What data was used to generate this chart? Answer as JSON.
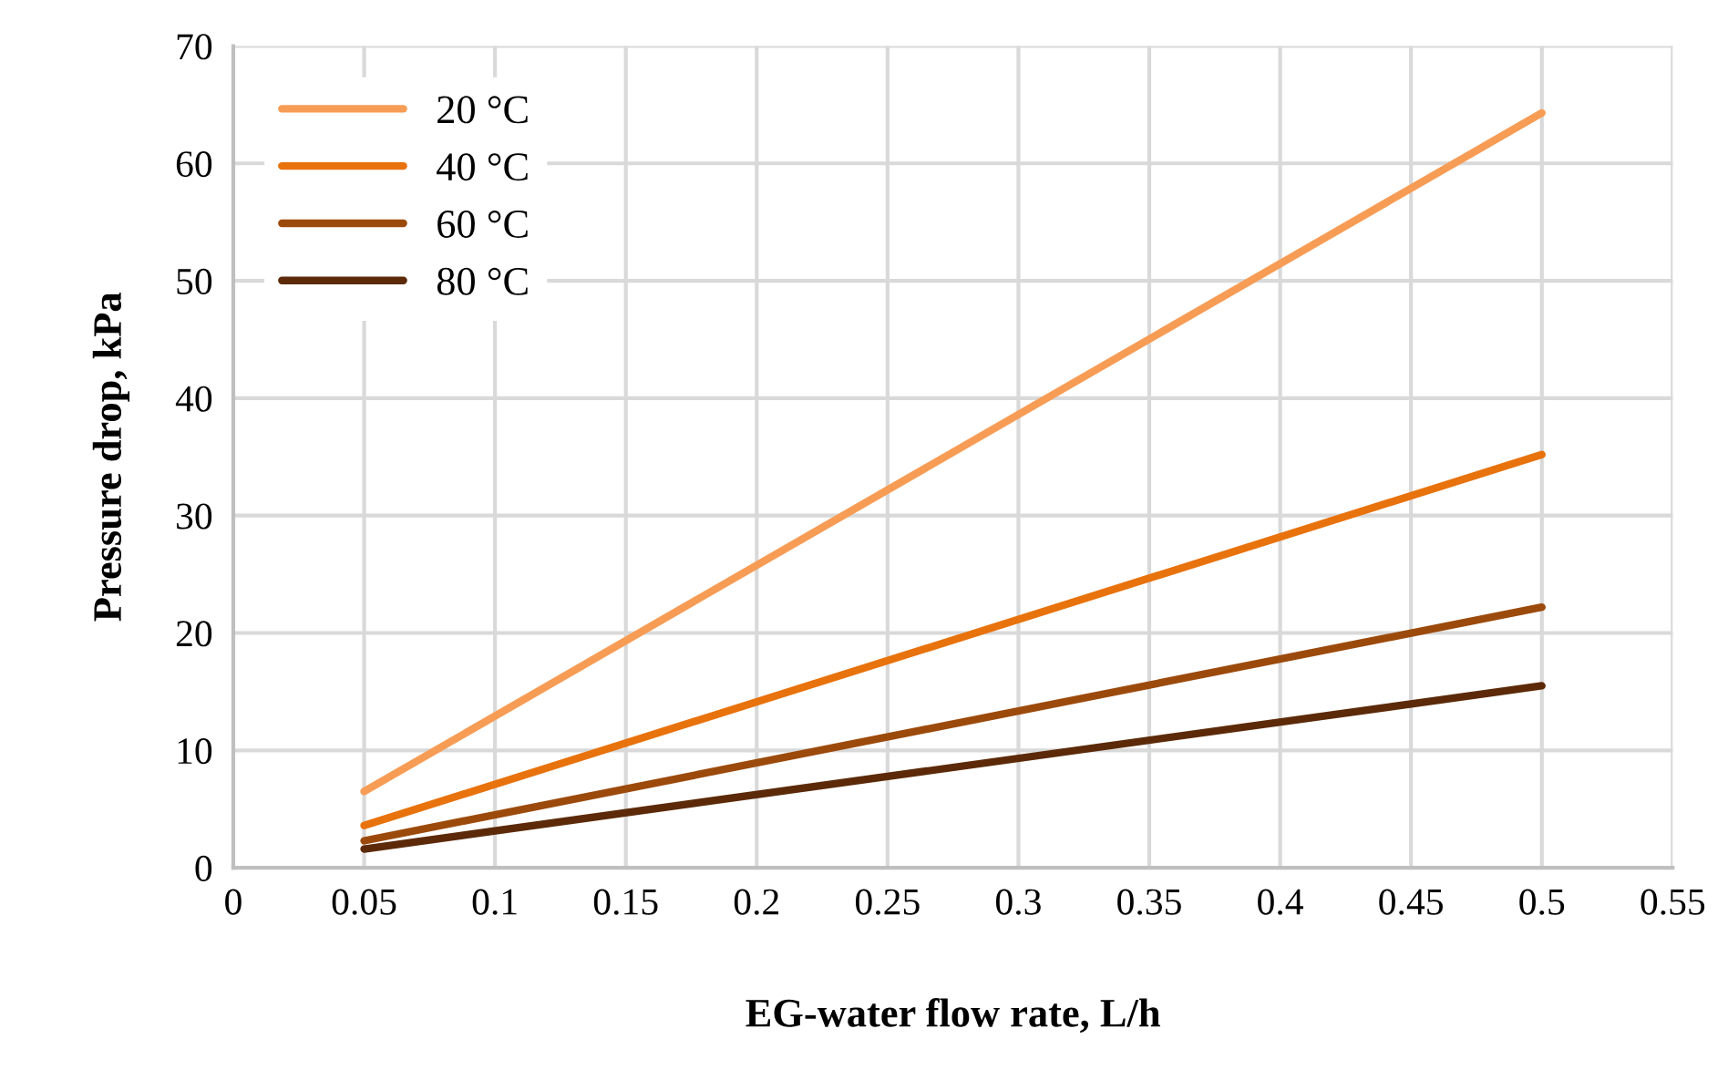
{
  "chart_data": {
    "type": "line",
    "xlabel": "EG-water flow rate, L/h",
    "ylabel": "Pressure drop, kPa",
    "x": [
      0.05,
      0.5
    ],
    "series": [
      {
        "name": "20 °C",
        "color": "#f79c55",
        "values": [
          6.5,
          64.3
        ]
      },
      {
        "name": "40 °C",
        "color": "#e8720c",
        "values": [
          3.6,
          35.2
        ]
      },
      {
        "name": "60 °C",
        "color": "#9c4a0c",
        "values": [
          2.3,
          22.2
        ]
      },
      {
        "name": "80 °C",
        "color": "#5c2a08",
        "values": [
          1.6,
          15.5
        ]
      }
    ],
    "xlim": [
      0,
      0.55
    ],
    "xticks": [
      0,
      0.05,
      0.1,
      0.15,
      0.2,
      0.25,
      0.3,
      0.35,
      0.4,
      0.45,
      0.5,
      0.55
    ],
    "ylim": [
      0,
      70
    ],
    "yticks": [
      0,
      10,
      20,
      30,
      40,
      50,
      60,
      70
    ],
    "grid": true,
    "legend": "top left",
    "marker": "none",
    "line_style": "solid"
  }
}
